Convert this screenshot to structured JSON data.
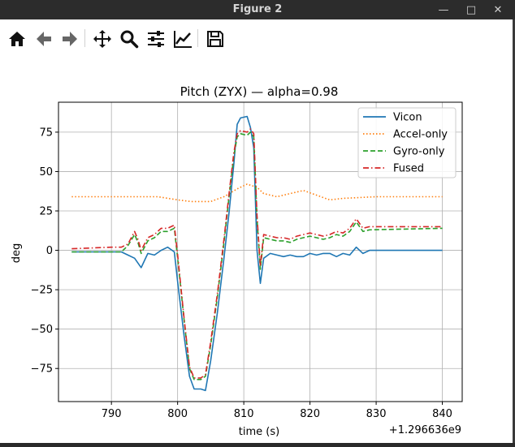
{
  "window": {
    "title": "Figure 2"
  },
  "toolbar": {
    "buttons": [
      {
        "icon": "home-icon"
      },
      {
        "icon": "back-arrow-icon"
      },
      {
        "icon": "forward-arrow-icon"
      },
      {
        "icon": "pan-icon"
      },
      {
        "icon": "zoom-icon"
      },
      {
        "icon": "subplots-icon"
      },
      {
        "icon": "edit-axis-icon"
      },
      {
        "icon": "save-icon"
      }
    ]
  },
  "chart_data": {
    "type": "line",
    "title": "Pitch (ZYX) — alpha=0.98",
    "xlabel": "time (s)",
    "ylabel": "deg",
    "x_offset_label": "+1.296636e9",
    "xlim": [
      782,
      843
    ],
    "ylim": [
      -96,
      94
    ],
    "xticks": [
      790,
      800,
      810,
      820,
      830,
      840
    ],
    "yticks": [
      -75,
      -50,
      -25,
      0,
      25,
      50,
      75
    ],
    "grid": true,
    "legend_position": "upper right",
    "series": [
      {
        "name": "Vicon",
        "color": "#1f77b4",
        "style": "solid",
        "points": [
          [
            784,
            -1
          ],
          [
            790,
            -1
          ],
          [
            791.5,
            -1
          ],
          [
            792.5,
            -3
          ],
          [
            793.5,
            -5
          ],
          [
            794.5,
            -11
          ],
          [
            795.5,
            -2
          ],
          [
            796.5,
            -3
          ],
          [
            797.5,
            0
          ],
          [
            798.5,
            2
          ],
          [
            799.5,
            -1
          ],
          [
            800,
            -20
          ],
          [
            801,
            -55
          ],
          [
            801.8,
            -80
          ],
          [
            802.5,
            -88
          ],
          [
            803.5,
            -88
          ],
          [
            804.2,
            -89
          ],
          [
            805,
            -70
          ],
          [
            806,
            -40
          ],
          [
            807,
            -5
          ],
          [
            807.8,
            25
          ],
          [
            808.5,
            55
          ],
          [
            809,
            80
          ],
          [
            809.5,
            84
          ],
          [
            810.5,
            85
          ],
          [
            811,
            78
          ],
          [
            811.5,
            65
          ],
          [
            812,
            0
          ],
          [
            812.5,
            -21
          ],
          [
            813,
            -5
          ],
          [
            814,
            -2
          ],
          [
            815,
            -3
          ],
          [
            816,
            -4
          ],
          [
            817,
            -3
          ],
          [
            818,
            -4
          ],
          [
            819,
            -4
          ],
          [
            820,
            -2
          ],
          [
            821,
            -3
          ],
          [
            822,
            -2
          ],
          [
            823,
            -2
          ],
          [
            824,
            -4
          ],
          [
            825,
            -2
          ],
          [
            826,
            -3
          ],
          [
            827,
            2
          ],
          [
            828,
            -2
          ],
          [
            829,
            0
          ],
          [
            840,
            0
          ]
        ]
      },
      {
        "name": "Accel-only",
        "color": "#ff7f0e",
        "style": "dotted",
        "points": [
          [
            784,
            34
          ],
          [
            790,
            34
          ],
          [
            794,
            34
          ],
          [
            797,
            34
          ],
          [
            800,
            32
          ],
          [
            802,
            31
          ],
          [
            805,
            31
          ],
          [
            807,
            34
          ],
          [
            809,
            39
          ],
          [
            810.5,
            42
          ],
          [
            812,
            40
          ],
          [
            813,
            36
          ],
          [
            815,
            34
          ],
          [
            817,
            36
          ],
          [
            819,
            38
          ],
          [
            821,
            35
          ],
          [
            823,
            32
          ],
          [
            825,
            33
          ],
          [
            830,
            34
          ],
          [
            840,
            34
          ]
        ]
      },
      {
        "name": "Gyro-only",
        "color": "#2ca02c",
        "style": "dashed",
        "points": [
          [
            784,
            -1
          ],
          [
            790,
            -1
          ],
          [
            791.5,
            -1
          ],
          [
            792.5,
            3
          ],
          [
            793.5,
            10
          ],
          [
            794,
            5
          ],
          [
            794.5,
            -2
          ],
          [
            795.5,
            6
          ],
          [
            796.5,
            8
          ],
          [
            797.5,
            12
          ],
          [
            798.5,
            12
          ],
          [
            799.5,
            14
          ],
          [
            800,
            -5
          ],
          [
            801,
            -45
          ],
          [
            801.8,
            -75
          ],
          [
            802.5,
            -82
          ],
          [
            803.5,
            -82
          ],
          [
            804.2,
            -80
          ],
          [
            805,
            -60
          ],
          [
            806,
            -30
          ],
          [
            807,
            5
          ],
          [
            807.8,
            35
          ],
          [
            808.5,
            60
          ],
          [
            809,
            72
          ],
          [
            809.5,
            74
          ],
          [
            810.5,
            73
          ],
          [
            811,
            75
          ],
          [
            811.5,
            72
          ],
          [
            812,
            20
          ],
          [
            812.5,
            -12
          ],
          [
            813,
            8
          ],
          [
            814,
            7
          ],
          [
            815,
            6
          ],
          [
            816,
            6
          ],
          [
            817,
            5
          ],
          [
            818,
            7
          ],
          [
            819,
            8
          ],
          [
            820,
            9
          ],
          [
            821,
            8
          ],
          [
            822,
            7
          ],
          [
            823,
            8
          ],
          [
            824,
            10
          ],
          [
            825,
            9
          ],
          [
            826,
            12
          ],
          [
            827,
            18
          ],
          [
            828,
            12
          ],
          [
            829,
            13
          ],
          [
            840,
            14
          ]
        ]
      },
      {
        "name": "Fused",
        "color": "#d62728",
        "style": "dashdot",
        "points": [
          [
            784,
            1
          ],
          [
            790,
            2
          ],
          [
            791.5,
            2
          ],
          [
            792.5,
            4
          ],
          [
            793.5,
            12
          ],
          [
            794,
            7
          ],
          [
            794.5,
            0
          ],
          [
            795.5,
            8
          ],
          [
            796.5,
            10
          ],
          [
            797.5,
            14
          ],
          [
            798.5,
            14
          ],
          [
            799.5,
            16
          ],
          [
            800,
            -3
          ],
          [
            801,
            -44
          ],
          [
            801.8,
            -74
          ],
          [
            802.5,
            -81
          ],
          [
            803.5,
            -81
          ],
          [
            804.2,
            -79
          ],
          [
            805,
            -58
          ],
          [
            806,
            -28
          ],
          [
            807,
            7
          ],
          [
            807.8,
            37
          ],
          [
            808.5,
            62
          ],
          [
            809,
            74
          ],
          [
            809.5,
            76
          ],
          [
            810.5,
            75
          ],
          [
            811,
            77
          ],
          [
            811.5,
            74
          ],
          [
            812,
            22
          ],
          [
            812.5,
            -10
          ],
          [
            813,
            10
          ],
          [
            814,
            9
          ],
          [
            815,
            8
          ],
          [
            816,
            8
          ],
          [
            817,
            7
          ],
          [
            818,
            9
          ],
          [
            819,
            10
          ],
          [
            820,
            11
          ],
          [
            821,
            10
          ],
          [
            822,
            9
          ],
          [
            823,
            10
          ],
          [
            824,
            12
          ],
          [
            825,
            11
          ],
          [
            826,
            14
          ],
          [
            827,
            20
          ],
          [
            828,
            14
          ],
          [
            829,
            15
          ],
          [
            840,
            15
          ]
        ]
      }
    ]
  }
}
